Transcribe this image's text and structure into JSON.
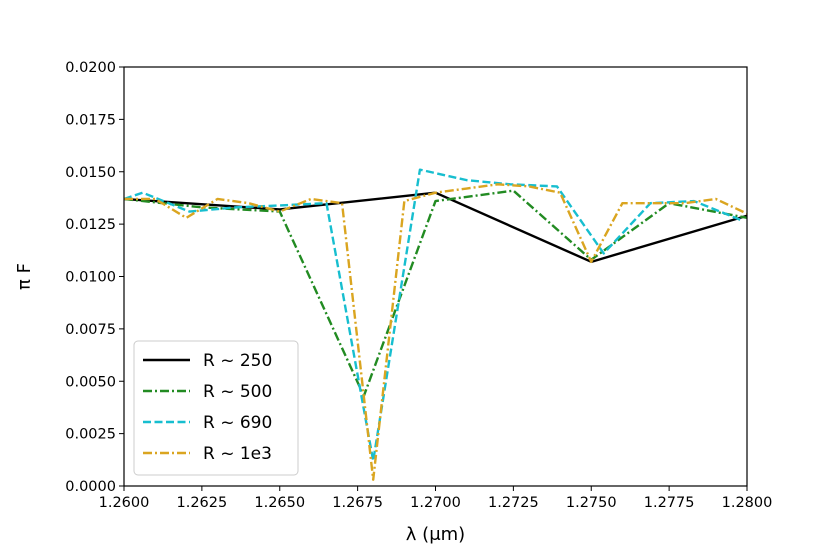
{
  "chart_data": {
    "type": "line",
    "xlabel": "λ (μm)",
    "ylabel": "π F",
    "xlim": [
      1.26,
      1.28
    ],
    "ylim": [
      0.0,
      0.02
    ],
    "xticks": [
      "1.2600",
      "1.2625",
      "1.2650",
      "1.2675",
      "1.2700",
      "1.2725",
      "1.2750",
      "1.2775",
      "1.2800"
    ],
    "xtick_values": [
      1.26,
      1.2625,
      1.265,
      1.2675,
      1.27,
      1.2725,
      1.275,
      1.2775,
      1.28
    ],
    "yticks": [
      "0.0000",
      "0.0025",
      "0.0050",
      "0.0075",
      "0.0100",
      "0.0125",
      "0.0150",
      "0.0175",
      "0.0200"
    ],
    "ytick_values": [
      0.0,
      0.0025,
      0.005,
      0.0075,
      0.01,
      0.0125,
      0.015,
      0.0175,
      0.02
    ],
    "grid": false,
    "legend_position": "lower-left",
    "series": [
      {
        "name": "R ~ 250",
        "color": "#000000",
        "style": "solid",
        "x": [
          1.26,
          1.265,
          1.27,
          1.275,
          1.28
        ],
        "y": [
          0.0137,
          0.0132,
          0.014,
          0.0107,
          0.0129
        ]
      },
      {
        "name": "R ~ 500",
        "color": "#228b22",
        "style": "dashdot",
        "x": [
          1.26,
          1.2625,
          1.265,
          1.2677,
          1.27,
          1.2725,
          1.275,
          1.2775,
          1.28
        ],
        "y": [
          0.0137,
          0.0133,
          0.0131,
          0.0043,
          0.0136,
          0.0141,
          0.0108,
          0.0135,
          0.0128
        ]
      },
      {
        "name": "R ~ 690",
        "color": "#17becf",
        "style": "dashed",
        "x": [
          1.26,
          1.2606,
          1.2621,
          1.2636,
          1.2651,
          1.2665,
          1.268,
          1.2695,
          1.271,
          1.2724,
          1.2739,
          1.2754,
          1.2769,
          1.2783,
          1.2798
        ],
        "y": [
          0.0137,
          0.014,
          0.0131,
          0.0133,
          0.0134,
          0.0135,
          0.0012,
          0.0151,
          0.0146,
          0.0144,
          0.0143,
          0.0111,
          0.0135,
          0.0136,
          0.0127
        ]
      },
      {
        "name": "R ~ 1e3",
        "color": "#daa520",
        "style": "dashdot",
        "x": [
          1.26,
          1.261,
          1.262,
          1.263,
          1.264,
          1.265,
          1.266,
          1.267,
          1.268,
          1.269,
          1.27,
          1.271,
          1.272,
          1.273,
          1.274,
          1.275,
          1.276,
          1.277,
          1.278,
          1.279,
          1.28
        ],
        "y": [
          0.0137,
          0.0137,
          0.0128,
          0.0137,
          0.0135,
          0.0131,
          0.0137,
          0.0135,
          0.0003,
          0.0136,
          0.014,
          0.0142,
          0.0144,
          0.0143,
          0.014,
          0.0107,
          0.0135,
          0.0135,
          0.0135,
          0.0137,
          0.013
        ]
      }
    ]
  }
}
